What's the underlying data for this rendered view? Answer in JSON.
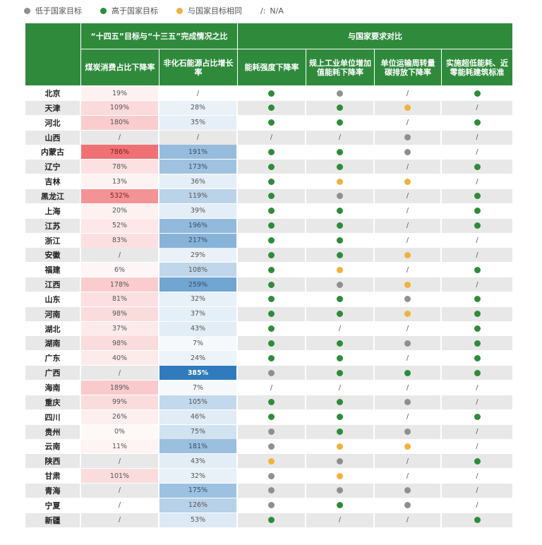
{
  "legend": [
    {
      "label": "低于国家目标",
      "status": "below",
      "color": "#8f8f8f"
    },
    {
      "label": "高于国家目标",
      "status": "above",
      "color": "#2e8b3a"
    },
    {
      "label": "与国家目标相同",
      "status": "same",
      "color": "#f0b23c"
    },
    {
      "symbol": "/:",
      "label": "N/A",
      "status": "na"
    }
  ],
  "header": {
    "group1": "“十四五”目标与“十三五”完成情况之比",
    "group2": "与国家要求对比",
    "col1": "煤炭消费占比下降率",
    "col2": "非化石能源占比增长率",
    "col3": "能耗强度下降率",
    "col4": "规上工业单位增加值能耗下降率",
    "col5": "单位运输周转量碳排放下降率",
    "col6": "实施超低能耗、近零能耗建筑标准"
  },
  "colors": {
    "header_green": "#2f8a3c",
    "coal_scale_max": "#f07074",
    "nonfossil_scale_max": "#2f7bbd",
    "status_above": "#2e8b3a",
    "status_below": "#8f8f8f",
    "status_same": "#f0b23c"
  },
  "chart_data": {
    "type": "table",
    "columns": [
      "煤炭消费占比下降率",
      "非化石能源占比增长率",
      "能耗强度下降率",
      "规上工业单位增加值能耗下降率",
      "单位运输周转量碳排放下降率",
      "实施超低能耗、近零能耗建筑标准"
    ],
    "rows": [
      {
        "province": "北京",
        "coal": "19%",
        "nonfossil": "/",
        "s": [
          "above",
          "below",
          "na",
          "above"
        ]
      },
      {
        "province": "天津",
        "coal": "109%",
        "nonfossil": "28%",
        "s": [
          "above",
          "above",
          "same",
          "na"
        ]
      },
      {
        "province": "河北",
        "coal": "180%",
        "nonfossil": "35%",
        "s": [
          "above",
          "above",
          "na",
          "above"
        ]
      },
      {
        "province": "山西",
        "coal": "/",
        "nonfossil": "/",
        "s": [
          "na",
          "na",
          "below",
          "na"
        ]
      },
      {
        "province": "内蒙古",
        "coal": "786%",
        "nonfossil": "191%",
        "s": [
          "above",
          "above",
          "below",
          "na"
        ]
      },
      {
        "province": "辽宁",
        "coal": "78%",
        "nonfossil": "173%",
        "s": [
          "above",
          "above",
          "na",
          "above"
        ]
      },
      {
        "province": "吉林",
        "coal": "13%",
        "nonfossil": "36%",
        "s": [
          "above",
          "same",
          "same",
          "na"
        ]
      },
      {
        "province": "黑龙江",
        "coal": "532%",
        "nonfossil": "119%",
        "s": [
          "above",
          "below",
          "na",
          "above"
        ]
      },
      {
        "province": "上海",
        "coal": "20%",
        "nonfossil": "39%",
        "s": [
          "above",
          "above",
          "na",
          "above"
        ]
      },
      {
        "province": "江苏",
        "coal": "52%",
        "nonfossil": "196%",
        "s": [
          "above",
          "above",
          "na",
          "above"
        ]
      },
      {
        "province": "浙江",
        "coal": "83%",
        "nonfossil": "217%",
        "s": [
          "above",
          "above",
          "na",
          "na"
        ]
      },
      {
        "province": "安徽",
        "coal": "/",
        "nonfossil": "29%",
        "s": [
          "above",
          "above",
          "same",
          "na"
        ]
      },
      {
        "province": "福建",
        "coal": "6%",
        "nonfossil": "108%",
        "s": [
          "above",
          "same",
          "na",
          "above"
        ]
      },
      {
        "province": "江西",
        "coal": "178%",
        "nonfossil": "259%",
        "s": [
          "above",
          "below",
          "same",
          "na"
        ]
      },
      {
        "province": "山东",
        "coal": "81%",
        "nonfossil": "32%",
        "s": [
          "above",
          "above",
          "below",
          "above"
        ]
      },
      {
        "province": "河南",
        "coal": "98%",
        "nonfossil": "37%",
        "s": [
          "above",
          "above",
          "same",
          "above"
        ]
      },
      {
        "province": "湖北",
        "coal": "37%",
        "nonfossil": "43%",
        "s": [
          "above",
          "na",
          "na",
          "above"
        ]
      },
      {
        "province": "湖南",
        "coal": "98%",
        "nonfossil": "7%",
        "s": [
          "above",
          "above",
          "below",
          "above"
        ]
      },
      {
        "province": "广东",
        "coal": "40%",
        "nonfossil": "24%",
        "s": [
          "above",
          "above",
          "na",
          "above"
        ]
      },
      {
        "province": "广西",
        "coal": "/",
        "nonfossil": "385%",
        "s": [
          "below",
          "above",
          "above",
          "above"
        ]
      },
      {
        "province": "海南",
        "coal": "189%",
        "nonfossil": "7%",
        "s": [
          "na",
          "na",
          "na",
          "na"
        ]
      },
      {
        "province": "重庆",
        "coal": "99%",
        "nonfossil": "105%",
        "s": [
          "above",
          "above",
          "below",
          "na"
        ]
      },
      {
        "province": "四川",
        "coal": "26%",
        "nonfossil": "46%",
        "s": [
          "above",
          "above",
          "na",
          "above"
        ]
      },
      {
        "province": "贵州",
        "coal": "0%",
        "nonfossil": "75%",
        "s": [
          "below",
          "above",
          "below",
          "na"
        ]
      },
      {
        "province": "云南",
        "coal": "11%",
        "nonfossil": "181%",
        "s": [
          "below",
          "same",
          "same",
          "na"
        ]
      },
      {
        "province": "陕西",
        "coal": "/",
        "nonfossil": "43%",
        "s": [
          "same",
          "below",
          "na",
          "above"
        ]
      },
      {
        "province": "甘肃",
        "coal": "101%",
        "nonfossil": "32%",
        "s": [
          "below",
          "same",
          "na",
          "na"
        ]
      },
      {
        "province": "青海",
        "coal": "/",
        "nonfossil": "175%",
        "s": [
          "below",
          "below",
          "below",
          "na"
        ]
      },
      {
        "province": "宁夏",
        "coal": "/",
        "nonfossil": "126%",
        "s": [
          "below",
          "above",
          "below",
          "na"
        ]
      },
      {
        "province": "新疆",
        "coal": "/",
        "nonfossil": "53%",
        "s": [
          "above",
          "na",
          "na",
          "above"
        ]
      }
    ]
  }
}
